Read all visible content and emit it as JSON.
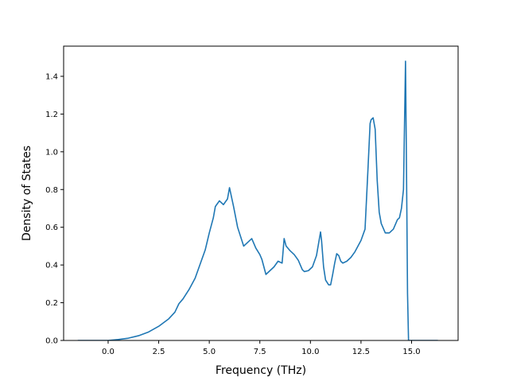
{
  "chart_data": {
    "type": "line",
    "title": "",
    "xlabel": "Frequency (THz)",
    "ylabel": "Density of States",
    "xlim": [
      -2.2,
      17.3
    ],
    "ylim": [
      0.0,
      1.56
    ],
    "xticks": [
      0.0,
      2.5,
      5.0,
      7.5,
      10.0,
      12.5,
      15.0
    ],
    "xtick_labels": [
      "0.0",
      "2.5",
      "5.0",
      "7.5",
      "10.0",
      "12.5",
      "15.0"
    ],
    "yticks": [
      0.0,
      0.2,
      0.4,
      0.6,
      0.8,
      1.0,
      1.2,
      1.4
    ],
    "ytick_labels": [
      "0.0",
      "0.2",
      "0.4",
      "0.6",
      "0.8",
      "1.0",
      "1.2",
      "1.4"
    ],
    "grid": false,
    "legend": "none",
    "line_color": "#1f77b4",
    "series": [
      {
        "x": [
          -1.5,
          -1.0,
          -0.5,
          0.0,
          0.5,
          1.0,
          1.5,
          2.0,
          2.5,
          3.0,
          3.3,
          3.5,
          3.7,
          4.0,
          4.3,
          4.6,
          4.8,
          5.0,
          5.2,
          5.3,
          5.5,
          5.7,
          5.9,
          6.0,
          6.2,
          6.4,
          6.7,
          6.9,
          7.1,
          7.3,
          7.5,
          7.6,
          7.8,
          8.0,
          8.2,
          8.4,
          8.6,
          8.7,
          8.8,
          9.0,
          9.2,
          9.4,
          9.6,
          9.7,
          9.9,
          10.1,
          10.3,
          10.5,
          10.55,
          10.65,
          10.75,
          10.9,
          11.0,
          11.1,
          11.2,
          11.3,
          11.4,
          11.5,
          11.6,
          11.8,
          12.0,
          12.2,
          12.5,
          12.7,
          12.85,
          12.95,
          13.0,
          13.1,
          13.2,
          13.3,
          13.4,
          13.5,
          13.7,
          13.9,
          14.1,
          14.3,
          14.4,
          14.5,
          14.6,
          14.7,
          14.75,
          14.8,
          14.85,
          14.95,
          15.2,
          16.0,
          16.3
        ],
        "y": [
          0.0,
          0.0,
          0.0,
          0.0,
          0.005,
          0.012,
          0.025,
          0.045,
          0.075,
          0.115,
          0.15,
          0.195,
          0.22,
          0.27,
          0.33,
          0.42,
          0.48,
          0.57,
          0.65,
          0.71,
          0.74,
          0.72,
          0.75,
          0.81,
          0.71,
          0.6,
          0.5,
          0.52,
          0.54,
          0.49,
          0.455,
          0.43,
          0.35,
          0.37,
          0.39,
          0.42,
          0.41,
          0.54,
          0.5,
          0.475,
          0.455,
          0.425,
          0.375,
          0.365,
          0.37,
          0.39,
          0.45,
          0.575,
          0.53,
          0.39,
          0.32,
          0.295,
          0.295,
          0.35,
          0.41,
          0.46,
          0.45,
          0.42,
          0.41,
          0.42,
          0.44,
          0.47,
          0.53,
          0.59,
          0.92,
          1.15,
          1.17,
          1.18,
          1.12,
          0.85,
          0.68,
          0.62,
          0.57,
          0.57,
          0.59,
          0.64,
          0.65,
          0.7,
          0.8,
          1.48,
          0.9,
          0.25,
          0.0,
          0.0,
          0.0,
          0.0,
          0.0
        ]
      }
    ]
  }
}
